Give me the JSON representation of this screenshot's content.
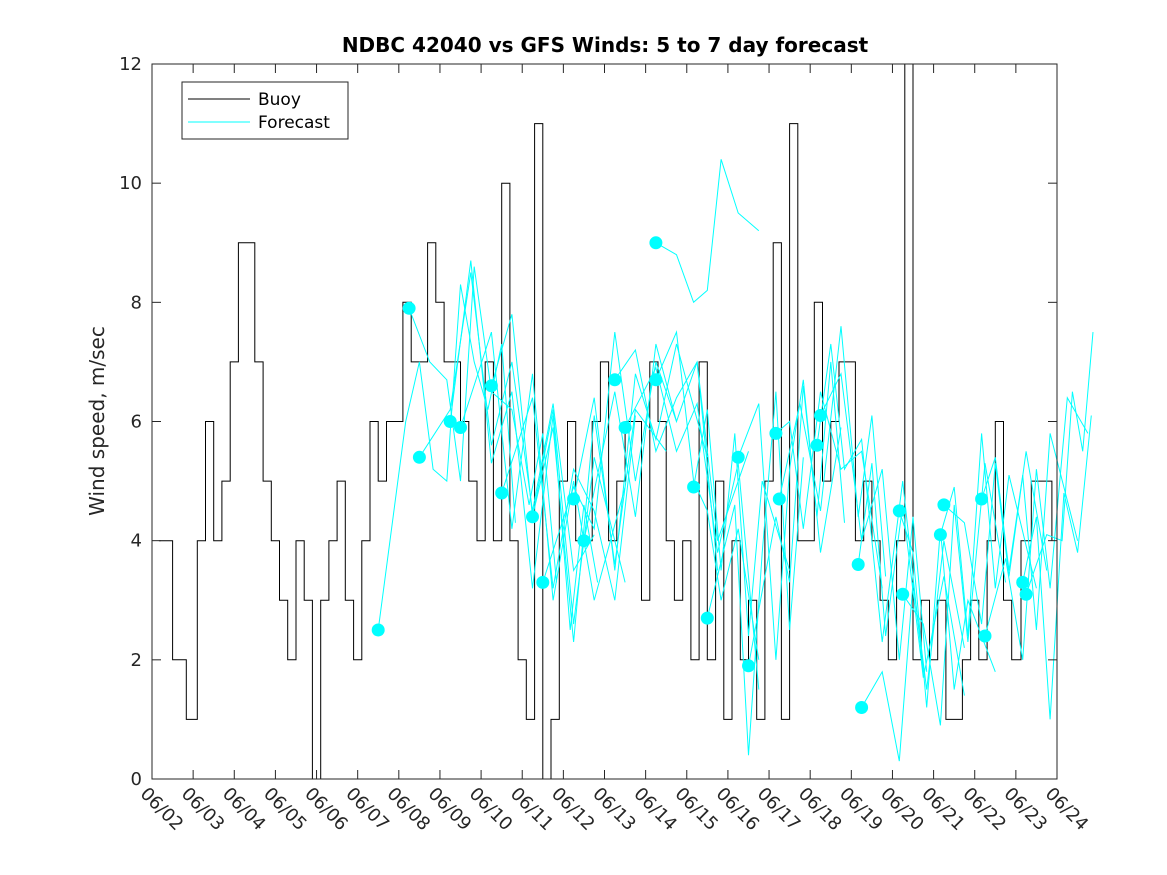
{
  "chart_data": {
    "type": "line",
    "title": "NDBC 42040 vs GFS Winds: 5 to 7 day forecast",
    "xlabel": "",
    "ylabel": "Wind speed, m/sec",
    "ylim": [
      0,
      12
    ],
    "yticks": [
      0,
      2,
      4,
      6,
      8,
      10,
      12
    ],
    "xlim": [
      "06/02",
      "06/24"
    ],
    "xticks": [
      "06/02",
      "06/03",
      "06/04",
      "06/05",
      "06/06",
      "06/07",
      "06/08",
      "06/09",
      "06/10",
      "06/11",
      "06/12",
      "06/13",
      "06/14",
      "06/15",
      "06/16",
      "06/17",
      "06/18",
      "06/19",
      "06/20",
      "06/21",
      "06/22",
      "06/23",
      "06/24"
    ],
    "grid": false,
    "legend": {
      "position": "top-left",
      "entries": [
        "Buoy",
        "Forecast"
      ]
    },
    "colors": {
      "buoy": "#000000",
      "forecast": "#00ffff",
      "axes": "#262626"
    },
    "series": [
      {
        "name": "Buoy",
        "style": "line",
        "x": [
          "06/02",
          "06/02",
          "06/02",
          "06/03",
          "06/03",
          "06/03",
          "06/03",
          "06/03",
          "06/04",
          "06/04",
          "06/04",
          "06/04",
          "06/04",
          "06/05",
          "06/05",
          "06/05",
          "06/05",
          "06/05",
          "06/06",
          "06/06",
          "06/06",
          "06/06",
          "06/06",
          "06/07",
          "06/07",
          "06/07",
          "06/07",
          "06/07",
          "06/08",
          "06/08",
          "06/08",
          "06/08",
          "06/08",
          "06/09",
          "06/09",
          "06/09",
          "06/09",
          "06/09",
          "06/10",
          "06/10",
          "06/10",
          "06/10",
          "06/10",
          "06/11",
          "06/11",
          "06/11",
          "06/11",
          "06/11",
          "06/12",
          "06/12",
          "06/12",
          "06/12",
          "06/12",
          "06/13",
          "06/13",
          "06/13",
          "06/13",
          "06/13",
          "06/14",
          "06/14",
          "06/14",
          "06/14",
          "06/14",
          "06/15",
          "06/15",
          "06/15",
          "06/15",
          "06/15",
          "06/16",
          "06/16",
          "06/16",
          "06/16",
          "06/16",
          "06/17",
          "06/17",
          "06/17",
          "06/17",
          "06/17",
          "06/18",
          "06/18",
          "06/18",
          "06/18",
          "06/18",
          "06/19",
          "06/19",
          "06/19",
          "06/19",
          "06/19",
          "06/20",
          "06/20",
          "06/20",
          "06/20",
          "06/20",
          "06/21",
          "06/21",
          "06/21",
          "06/21",
          "06/21",
          "06/22",
          "06/22",
          "06/22",
          "06/22",
          "06/22",
          "06/23",
          "06/23",
          "06/23",
          "06/23"
        ],
        "values": [
          4,
          2,
          1,
          4,
          6,
          4,
          5,
          7,
          9,
          9,
          7,
          5,
          4,
          3,
          2,
          4,
          3,
          0,
          3,
          4,
          5,
          3,
          2,
          4,
          6,
          5,
          6,
          6,
          8,
          7,
          7,
          9,
          8,
          7,
          7,
          6,
          5,
          4,
          7,
          4,
          10,
          4,
          2,
          1,
          11,
          0,
          1,
          5,
          6,
          4,
          4,
          6,
          7,
          4,
          5,
          6,
          6,
          3,
          7,
          6,
          4,
          3,
          4,
          2,
          7,
          2,
          5,
          1,
          4,
          2,
          3,
          1,
          5,
          9,
          1,
          11,
          4,
          4,
          8,
          5,
          6,
          7,
          7,
          4,
          5,
          4,
          3,
          2,
          4,
          12,
          2,
          3,
          2,
          3,
          1,
          1,
          2,
          3,
          2,
          4,
          6,
          3,
          2,
          4,
          5,
          5,
          4
        ]
      },
      {
        "name": "Forecast",
        "style": "lines-with-markers",
        "runs": [
          {
            "x": [
              "06/07",
              "06/08",
              "06/08",
              "06/08",
              "06/09",
              "06/09",
              "06/09",
              "06/10",
              "06/10",
              "06/10"
            ],
            "values": [
              2.5,
              6,
              7,
              5.2,
              5,
              8.3,
              7,
              6.2,
              7.3,
              4.3
            ]
          },
          {
            "x": [
              "06/08",
              "06/08",
              "06/09",
              "06/09",
              "06/09",
              "06/10",
              "06/10",
              "06/11",
              "06/11",
              "06/11"
            ],
            "values": [
              7.9,
              7,
              6.7,
              5,
              8.6,
              6.5,
              6.2,
              4.6,
              5.8,
              3.3
            ]
          },
          {
            "x": [
              "06/08",
              "06/09",
              "06/09",
              "06/10",
              "06/10",
              "06/11",
              "06/11",
              "06/12",
              "06/12"
            ],
            "values": [
              5.4,
              6.2,
              8.5,
              5.6,
              7,
              4.5,
              6.3,
              3.5,
              4.1
            ]
          },
          {
            "x": [
              "06/09",
              "06/09",
              "06/10",
              "06/10",
              "06/11",
              "06/11",
              "06/12",
              "06/12",
              "06/12"
            ],
            "values": [
              6,
              8.7,
              5.3,
              6.5,
              3.2,
              6.1,
              2.5,
              4.6,
              3.3
            ]
          },
          {
            "x": [
              "06/09",
              "06/10",
              "06/10",
              "06/11",
              "06/11",
              "06/12",
              "06/12",
              "06/13"
            ],
            "values": [
              5.9,
              7.5,
              4.2,
              6.8,
              3,
              5,
              3,
              4.9
            ]
          },
          {
            "x": [
              "06/10",
              "06/10",
              "06/11",
              "06/11",
              "06/12",
              "06/12",
              "06/13"
            ],
            "values": [
              6.6,
              7.8,
              4.4,
              6.2,
              2.6,
              5.4,
              3.3
            ]
          },
          {
            "x": [
              "06/10",
              "06/11",
              "06/11",
              "06/12",
              "06/12",
              "06/13",
              "06/13"
            ],
            "values": [
              4.8,
              6.4,
              3.2,
              5.2,
              4.5,
              3,
              6.1
            ]
          },
          {
            "x": [
              "06/11",
              "06/11",
              "06/12",
              "06/12",
              "06/13",
              "06/13",
              "06/14"
            ],
            "values": [
              4.4,
              5.9,
              2.3,
              6.1,
              3.6,
              6.2,
              5.5
            ]
          },
          {
            "x": [
              "06/11",
              "06/12",
              "06/12",
              "06/13",
              "06/13",
              "06/14",
              "06/14"
            ],
            "values": [
              3.3,
              4.9,
              4.2,
              7.5,
              5,
              7,
              6
            ]
          },
          {
            "x": [
              "06/12",
              "06/12",
              "06/13",
              "06/13",
              "06/14",
              "06/14",
              "06/15"
            ],
            "values": [
              4.7,
              6.4,
              3.5,
              6.8,
              5.7,
              7.3,
              5.4
            ]
          },
          {
            "x": [
              "06/12",
              "06/13",
              "06/13",
              "06/14",
              "06/14",
              "06/15",
              "06/15"
            ],
            "values": [
              4,
              6.5,
              4.4,
              7.3,
              6,
              7,
              3.5
            ]
          },
          {
            "x": [
              "06/13",
              "06/13",
              "06/14",
              "06/14",
              "06/15",
              "06/15",
              "06/16"
            ],
            "values": [
              6.7,
              7.2,
              5.5,
              6.4,
              7,
              4,
              5.5
            ]
          },
          {
            "x": [
              "06/13",
              "06/14",
              "06/14",
              "06/15",
              "06/15",
              "06/16",
              "06/16"
            ],
            "values": [
              5.9,
              6.9,
              5.5,
              6.3,
              3.8,
              5.3,
              1.5
            ]
          },
          {
            "x": [
              "06/14",
              "06/14",
              "06/15",
              "06/15",
              "06/15",
              "06/16",
              "06/16"
            ],
            "values": [
              6.7,
              7.5,
              5,
              4.5,
              3,
              4.2,
              2
            ]
          },
          {
            "x": [
              "06/14",
              "06/14",
              "06/15",
              "06/15",
              "06/15",
              "06/16",
              "06/16"
            ],
            "values": [
              9,
              8.8,
              8,
              8.2,
              10.4,
              9.5,
              9.2
            ]
          },
          {
            "x": [
              "06/15",
              "06/15",
              "06/15",
              "06/16",
              "06/16",
              "06/16",
              "06/17"
            ],
            "values": [
              4.9,
              6.2,
              3.5,
              5.8,
              2.4,
              5,
              3.5
            ]
          },
          {
            "x": [
              "06/15",
              "06/16",
              "06/16",
              "06/16",
              "06/17",
              "06/17",
              "06/17"
            ],
            "values": [
              2.7,
              4.6,
              0.4,
              3.8,
              6.5,
              2.5,
              5.4
            ]
          },
          {
            "x": [
              "06/16",
              "06/16",
              "06/17",
              "06/17",
              "06/17",
              "06/18",
              "06/18"
            ],
            "values": [
              5.4,
              6.3,
              2,
              5.2,
              6.7,
              3.8,
              5.9
            ]
          },
          {
            "x": [
              "06/16",
              "06/17",
              "06/17",
              "06/17",
              "06/18",
              "06/18",
              "06/18"
            ],
            "values": [
              1.9,
              4.4,
              3.3,
              6.6,
              4.4,
              7,
              4.3
            ]
          },
          {
            "x": [
              "06/17",
              "06/17",
              "06/17",
              "06/18",
              "06/18",
              "06/19",
              "06/19"
            ],
            "values": [
              5.8,
              6,
              4.2,
              6.5,
              5.2,
              5.5,
              3.2
            ]
          },
          {
            "x": [
              "06/17",
              "06/17",
              "06/18",
              "06/18",
              "06/19",
              "06/19",
              "06/19"
            ],
            "values": [
              4.7,
              6.3,
              4.5,
              7.6,
              4.4,
              6.1,
              3.4
            ]
          },
          {
            "x": [
              "06/18",
              "06/18",
              "06/18",
              "06/19",
              "06/19",
              "06/20",
              "06/20"
            ],
            "values": [
              5.6,
              7.3,
              5.2,
              5.7,
              2.3,
              5,
              1.8
            ]
          },
          {
            "x": [
              "06/18",
              "06/18",
              "06/19",
              "06/19",
              "06/20",
              "06/20",
              "06/20"
            ],
            "values": [
              6.1,
              6.8,
              4,
              5.2,
              2,
              4.4,
              1.8
            ]
          },
          {
            "x": [
              "06/19",
              "06/19",
              "06/19",
              "06/20",
              "06/20",
              "06/21",
              "06/21"
            ],
            "values": [
              3.6,
              5.3,
              2.4,
              4.6,
              1.7,
              3.4,
              1.4
            ]
          },
          {
            "x": [
              "06/19",
              "06/19",
              "06/20",
              "06/20",
              "06/20",
              "06/21",
              "06/21"
            ],
            "values": [
              1.2,
              1.8,
              0.3,
              3.3,
              1.5,
              4,
              2.2
            ]
          },
          {
            "x": [
              "06/20",
              "06/20",
              "06/20",
              "06/21",
              "06/21",
              "06/21",
              "06/22"
            ],
            "values": [
              4.5,
              3.8,
              1.2,
              4.2,
              1.5,
              3,
              1.8
            ]
          },
          {
            "x": [
              "06/20",
              "06/20",
              "06/21",
              "06/21",
              "06/21",
              "06/22",
              "06/22"
            ],
            "values": [
              3.1,
              2.6,
              0.9,
              4.6,
              2.3,
              5.3,
              3.3
            ]
          },
          {
            "x": [
              "06/21",
              "06/21",
              "06/21",
              "06/22",
              "06/22",
              "06/22",
              "06/23"
            ],
            "values": [
              4.1,
              4.9,
              2.4,
              5.8,
              3.2,
              5.1,
              3.2
            ]
          },
          {
            "x": [
              "06/21",
              "06/21",
              "06/22",
              "06/22",
              "06/22",
              "06/23",
              "06/23"
            ],
            "values": [
              4.6,
              4.3,
              2.6,
              5.3,
              3.4,
              5.5,
              3.5
            ]
          },
          {
            "x": [
              "06/22",
              "06/22",
              "06/22",
              "06/23",
              "06/23",
              "06/23",
              "06/24"
            ],
            "values": [
              4.7,
              5.4,
              3.5,
              5.1,
              2.5,
              5.8,
              4
            ]
          },
          {
            "x": [
              "06/22",
              "06/22",
              "06/23",
              "06/23",
              "06/23",
              "06/24",
              "06/24"
            ],
            "values": [
              2.4,
              3.7,
              2,
              5.2,
              3.2,
              6.4,
              5.8
            ]
          },
          {
            "x": [
              "06/23",
              "06/23",
              "06/23",
              "06/24",
              "06/24",
              "06/24"
            ],
            "values": [
              3.3,
              4.4,
              1,
              4.8,
              3.8,
              6.1
            ]
          },
          {
            "x": [
              "06/23",
              "06/23",
              "06/24",
              "06/24",
              "06/24",
              "06/24"
            ],
            "values": [
              3.1,
              4.1,
              4,
              6.5,
              5.5,
              7.5
            ]
          }
        ]
      }
    ]
  }
}
